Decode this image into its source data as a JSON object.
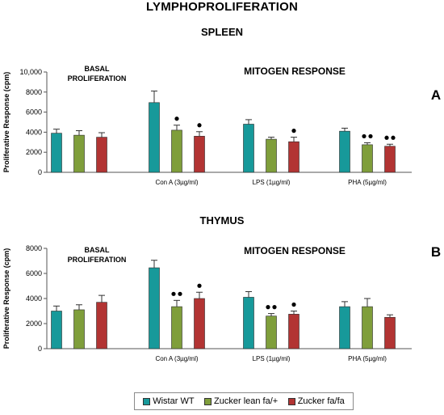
{
  "title": "LYMPHOPROLIFERATION",
  "colors": {
    "wistar": "#17999a",
    "lean": "#7f9e3b",
    "fafa": "#b23433",
    "errorbar": "#333333"
  },
  "legend": [
    {
      "label": "Wistar WT",
      "color": "#17999a"
    },
    {
      "label": "Zucker lean fa/+",
      "color": "#7f9e3b"
    },
    {
      "label": "Zucker fa/fa",
      "color": "#b23433"
    }
  ],
  "chart_data": [
    {
      "type": "bar",
      "subtitle": "SPLEEN",
      "panel_label": "A",
      "ylabel": "Proliferative Response (cpm)",
      "ylim": [
        0,
        10000
      ],
      "yticks": [
        "0",
        "2000",
        "4000",
        "6000",
        "8000",
        "10,000"
      ],
      "annotation_basal": [
        "BASAL",
        "PROLIFERATION"
      ],
      "annotation_mitogen": "MITOGEN RESPONSE",
      "groups": [
        {
          "label": "",
          "values": [
            3900,
            3700,
            3500
          ],
          "errors": [
            400,
            450,
            450
          ],
          "markers": [
            0,
            0,
            0
          ]
        },
        {
          "label": "Con A (3µg/ml)",
          "values": [
            6950,
            4200,
            3600
          ],
          "errors": [
            1150,
            500,
            450
          ],
          "markers": [
            0,
            1,
            1
          ]
        },
        {
          "label": "LPS (1µg/ml)",
          "values": [
            4800,
            3300,
            3050
          ],
          "errors": [
            450,
            200,
            450
          ],
          "markers": [
            0,
            0,
            1
          ]
        },
        {
          "label": "PHA (5µg/ml)",
          "values": [
            4100,
            2750,
            2600
          ],
          "errors": [
            300,
            200,
            200
          ],
          "markers": [
            0,
            2,
            2
          ]
        }
      ]
    },
    {
      "type": "bar",
      "subtitle": "THYMUS",
      "panel_label": "B",
      "ylabel": "Proliferative Response (cpm)",
      "ylim": [
        0,
        8000
      ],
      "yticks": [
        "0",
        "2000",
        "4000",
        "6000",
        "8000"
      ],
      "annotation_basal": [
        "BASAL",
        "PROLIFERATION"
      ],
      "annotation_mitogen": "MITOGEN RESPONSE",
      "groups": [
        {
          "label": "",
          "values": [
            3000,
            3100,
            3700
          ],
          "errors": [
            400,
            400,
            550
          ],
          "markers": [
            0,
            0,
            0
          ]
        },
        {
          "label": "Con A (3µg/ml)",
          "values": [
            6450,
            3350,
            4000
          ],
          "errors": [
            600,
            500,
            500
          ],
          "markers": [
            0,
            2,
            1
          ]
        },
        {
          "label": "LPS (1µg/ml)",
          "values": [
            4100,
            2600,
            2750
          ],
          "errors": [
            450,
            200,
            250
          ],
          "markers": [
            0,
            2,
            1
          ]
        },
        {
          "label": "PHA (5µg/ml)",
          "values": [
            3350,
            3350,
            2500
          ],
          "errors": [
            400,
            650,
            200
          ],
          "markers": [
            0,
            0,
            0
          ]
        }
      ]
    }
  ]
}
